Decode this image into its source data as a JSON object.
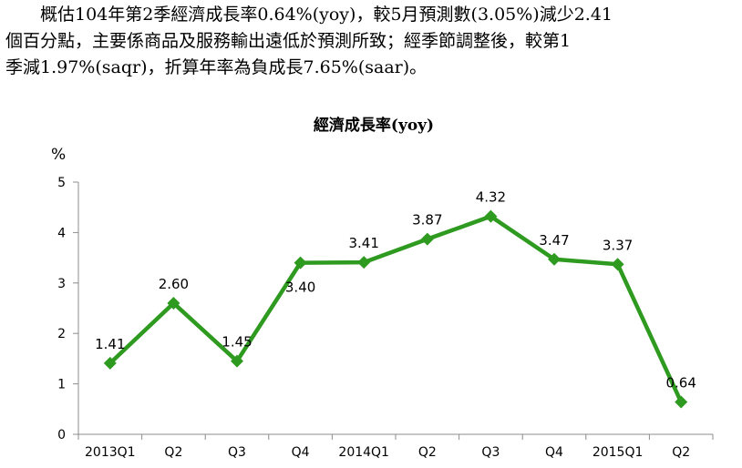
{
  "intro": {
    "lines": [
      "概估104年第2季經濟成長率0.64%(yoy)，較5月預測數(3.05%)減少2.41",
      "個百分點，主要係商品及服務輸出遠低於預測所致；經季節調整後，較第1",
      "季減1.97%(saqr)，折算年率為負成長7.65%(saar)。"
    ]
  },
  "chart_data": {
    "type": "line",
    "title": "經濟成長率(yoy)",
    "ylabel": "%",
    "categories": [
      "2013Q1",
      "Q2",
      "Q3",
      "Q4",
      "2014Q1",
      "Q2",
      "Q3",
      "Q4",
      "2015Q1",
      "Q2"
    ],
    "values": [
      1.41,
      2.6,
      1.45,
      3.4,
      3.41,
      3.87,
      4.32,
      3.47,
      3.37,
      0.64
    ],
    "value_labels": [
      "1.41",
      "2.60",
      "1.45",
      "3.40",
      "3.41",
      "3.87",
      "4.32",
      "3.47",
      "3.37",
      "0.64"
    ],
    "label_positions": [
      "above",
      "above",
      "above",
      "below",
      "above",
      "above",
      "above",
      "above",
      "above",
      "above"
    ],
    "ylim": [
      0,
      5
    ],
    "yticks": [
      0,
      1,
      2,
      3,
      4,
      5
    ],
    "grid": false,
    "legend": "none",
    "line_color": "#2e9a1f",
    "marker": "diamond"
  }
}
